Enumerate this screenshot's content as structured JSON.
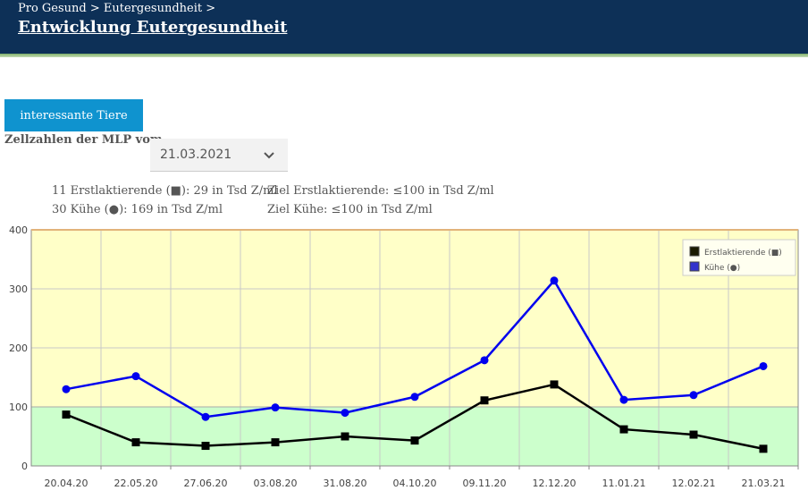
{
  "header": {
    "breadcrumb": "Pro Gesund > Eutergesundheit >",
    "title": "Entwicklung Eutergesundheit"
  },
  "button": {
    "label": "interessante Tiere"
  },
  "filter": {
    "label": "Zellzahlen der MLP vom",
    "selected_date": "21.03.2021",
    "icon": "chevron-down-icon"
  },
  "stats": {
    "line1_left": "11 Erstlaktierende (■): 29 in Tsd Z/ml",
    "line1_right": "Ziel Erstlaktierende: ≤100 in Tsd Z/ml",
    "line2_left": "30 Kühe (●): 169 in Tsd Z/ml",
    "line2_right": "Ziel Kühe: ≤100 in Tsd Z/ml"
  },
  "colors": {
    "header_bg": "#0d3057",
    "button_bg": "#0f93cf",
    "band_high": "#ffffc8",
    "band_low": "#ccffcc",
    "series_erst": "#000000",
    "series_kuehe": "#0000ee"
  },
  "chart_data": {
    "type": "line",
    "categories": [
      "20.04.20",
      "22.05.20",
      "27.06.20",
      "03.08.20",
      "31.08.20",
      "04.10.20",
      "09.11.20",
      "12.12.20",
      "11.01.21",
      "12.02.21",
      "21.03.21"
    ],
    "ylim": [
      0,
      400
    ],
    "yticks": [
      "0",
      "100",
      "200",
      "300",
      "400"
    ],
    "threshold": 100,
    "grid": true,
    "legend_position": "top-right",
    "series": [
      {
        "name": "Erstlaktierende (■)",
        "marker": "square",
        "color": "#000000",
        "values": [
          87,
          40,
          34,
          40,
          50,
          43,
          111,
          138,
          62,
          53,
          29
        ]
      },
      {
        "name": "Kühe (●)",
        "marker": "circle",
        "color": "#0000ee",
        "values": [
          130,
          152,
          83,
          99,
          90,
          117,
          179,
          314,
          112,
          120,
          169
        ]
      }
    ]
  }
}
